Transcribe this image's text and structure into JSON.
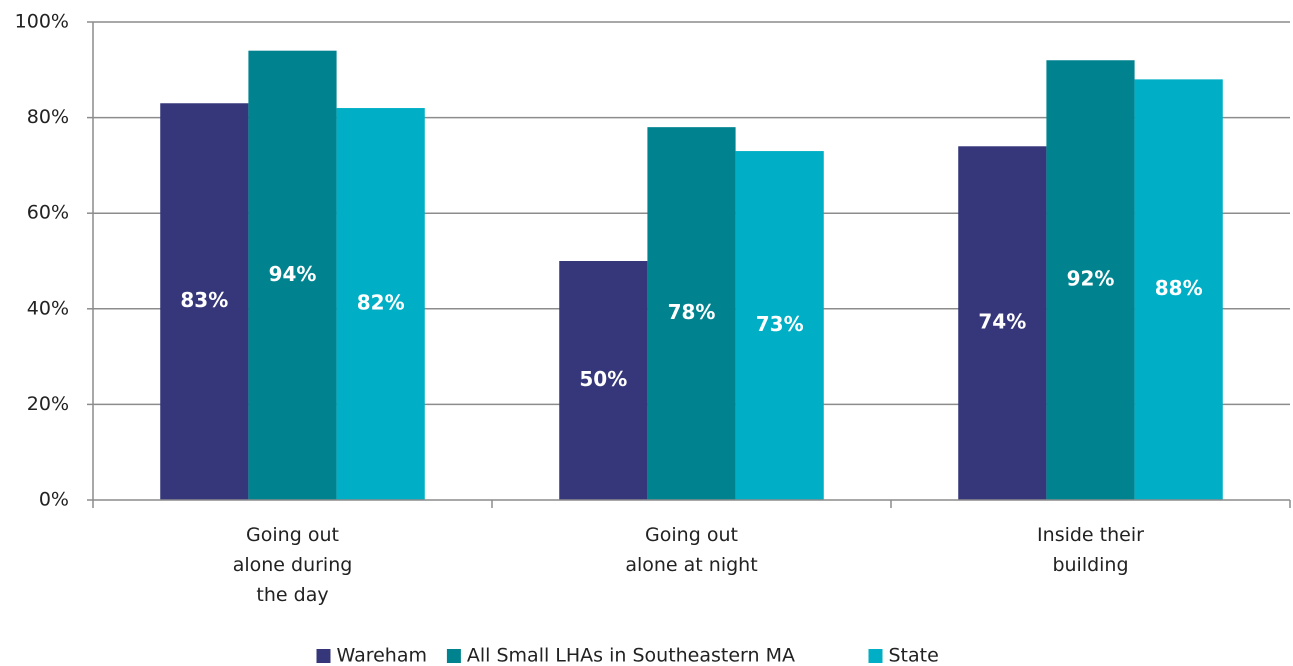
{
  "chart_data": {
    "type": "bar",
    "categories": [
      "Going out alone during the day",
      "Going out alone at night",
      "Inside their building"
    ],
    "series": [
      {
        "name": "Wareham",
        "color": "#35377a",
        "values": [
          83,
          50,
          74
        ],
        "value_labels": [
          "83%",
          "50%",
          "74%"
        ]
      },
      {
        "name": "All Small LHAs in Southeastern MA",
        "color": "#00838f",
        "values": [
          94,
          78,
          92
        ],
        "value_labels": [
          "94%",
          "78%",
          "92%"
        ]
      },
      {
        "name": "State",
        "color": "#00afc5",
        "values": [
          82,
          73,
          88
        ],
        "value_labels": [
          "82%",
          "73%",
          "88%"
        ]
      }
    ],
    "ylim": [
      0,
      100
    ],
    "yticks": [
      {
        "value": 0,
        "label": "0%"
      },
      {
        "value": 20,
        "label": "20%"
      },
      {
        "value": 40,
        "label": "40%"
      },
      {
        "value": 60,
        "label": "60%"
      },
      {
        "value": 80,
        "label": "80%"
      },
      {
        "value": 100,
        "label": "100%"
      }
    ],
    "grid": true,
    "legend": "bottom"
  }
}
